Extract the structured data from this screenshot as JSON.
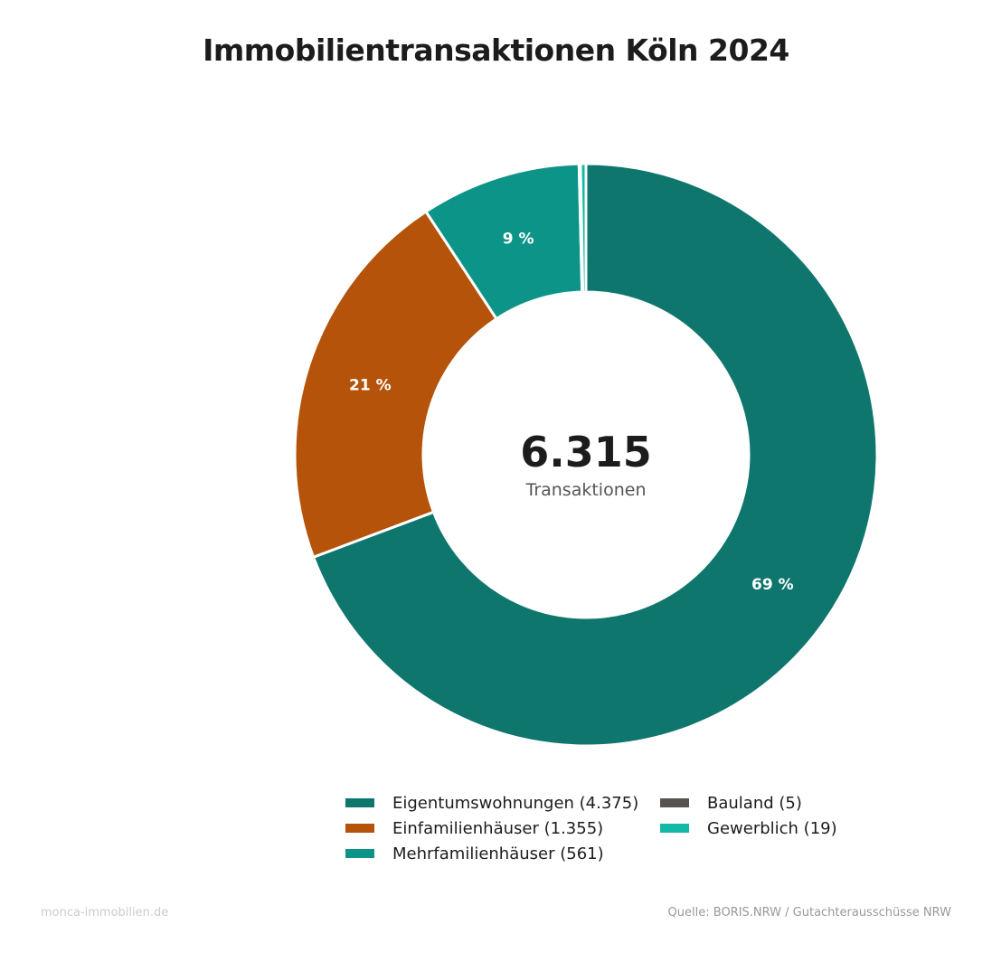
{
  "chart_data": {
    "type": "pie",
    "variant": "donut",
    "title": "Immobilientransaktionen Köln 2024",
    "center_value": "6.315",
    "center_label": "Transaktionen",
    "slices": [
      {
        "name": "Eigentumswohnungen",
        "value": 4375,
        "legend": "Eigentumswohnungen (4.375)",
        "label": "69 %",
        "color": "#0f766e"
      },
      {
        "name": "Einfamilienhäuser",
        "value": 1355,
        "legend": "Einfamilienhäuser (1.355)",
        "label": "21 %",
        "color": "#b45309"
      },
      {
        "name": "Mehrfamilienhäuser",
        "value": 561,
        "legend": "Mehrfamilienhäuser (561)",
        "label": "9 %",
        "color": "#0d9488"
      },
      {
        "name": "Bauland",
        "value": 5,
        "legend": "Bauland (5)",
        "label": "",
        "color": "#57534e"
      },
      {
        "name": "Gewerblich",
        "value": 19,
        "legend": "Gewerblich (19)",
        "label": "",
        "color": "#14b8a6"
      }
    ],
    "legend_placement": "bottom"
  },
  "footer": {
    "left": "monca-immobilien.de",
    "right": "Quelle: BORIS.NRW / Gutachterausschüsse NRW"
  }
}
